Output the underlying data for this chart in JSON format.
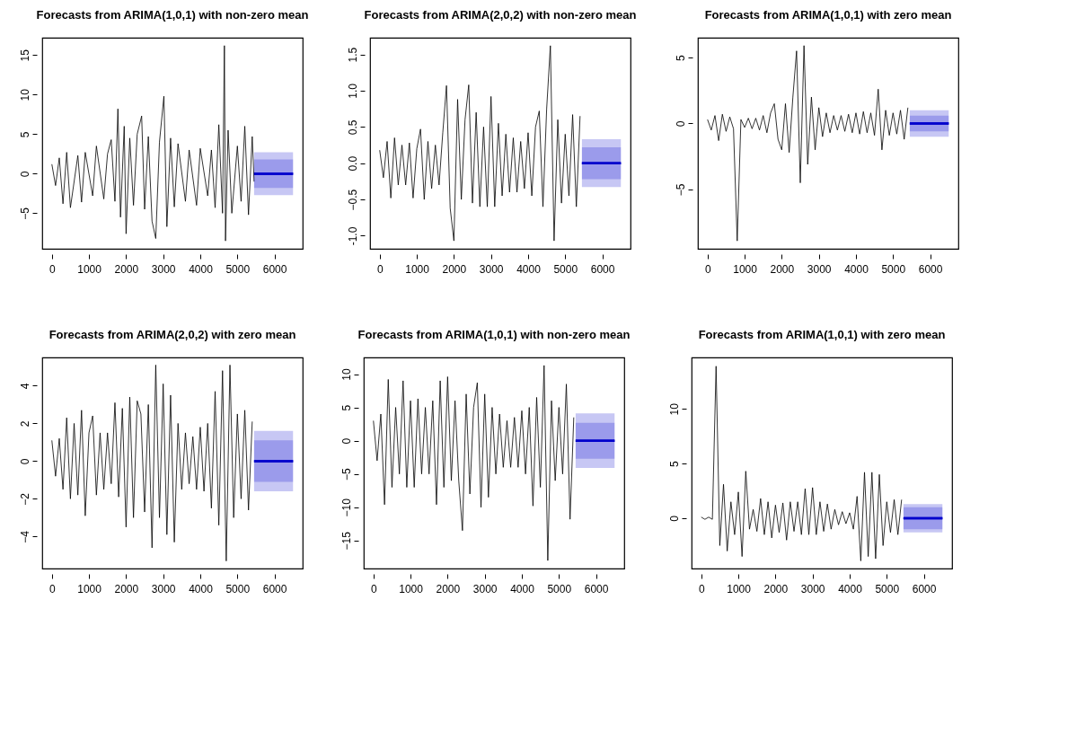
{
  "chart_data": [
    {
      "type": "line",
      "title": "Forecasts from ARIMA(1,0,1) with non-zero mean",
      "xlim": [
        -260,
        6760
      ],
      "xticks": [
        0,
        1000,
        2000,
        3000,
        4000,
        5000,
        6000
      ],
      "ylim": [
        -9.5,
        17.2
      ],
      "yticks": [
        -5,
        0,
        5,
        10,
        15
      ],
      "series": [
        {
          "color": "#000000",
          "x": [
            0,
            100,
            200,
            300,
            400,
            500,
            700,
            800,
            900,
            1100,
            1200,
            1400,
            1500,
            1600,
            1700,
            1780,
            1850,
            1950,
            2000,
            2100,
            2200,
            2300,
            2420,
            2500,
            2600,
            2700,
            2800,
            2900,
            3020,
            3100,
            3200,
            3300,
            3400,
            3600,
            3700,
            3900,
            4000,
            4200,
            4300,
            4400,
            4500,
            4600,
            4650,
            4680,
            4750,
            4850,
            5000,
            5100,
            5200,
            5300,
            5400,
            5450
          ],
          "values": [
            1.2,
            -1.5,
            2.0,
            -3.8,
            2.7,
            -4.3,
            2.3,
            -3.6,
            2.7,
            -2.8,
            3.5,
            -3.2,
            2.5,
            4.3,
            -3.5,
            8.2,
            -5.5,
            6.0,
            -7.6,
            4.5,
            -4.0,
            5.0,
            7.3,
            -4.5,
            4.7,
            -6.0,
            -8.2,
            4.0,
            9.8,
            -6.7,
            4.5,
            -4.2,
            3.8,
            -3.5,
            3.0,
            -4.0,
            3.2,
            -2.8,
            3.0,
            -4.3,
            6.2,
            -5.0,
            16.2,
            -8.5,
            5.5,
            -5.0,
            3.5,
            -3.5,
            6.0,
            -5.2,
            4.7,
            -1.0
          ]
        },
        {
          "color": "#0000cc",
          "x": [
            5450,
            6500
          ],
          "values": [
            0,
            0
          ],
          "lower": [
            -2.7,
            -2.7
          ],
          "upper": [
            2.7,
            2.7
          ]
        },
        {
          "color": "#0000cc",
          "x": [
            5450,
            6500
          ],
          "values": [
            0,
            0
          ],
          "lower": [
            -1.8,
            -1.8
          ],
          "upper": [
            1.8,
            1.8
          ]
        }
      ]
    },
    {
      "type": "line",
      "title": "Forecasts from ARIMA(2,0,2) with non-zero mean",
      "xlim": [
        -260,
        6760
      ],
      "xticks": [
        0,
        1000,
        2000,
        3000,
        4000,
        5000,
        6000
      ],
      "ylim": [
        -1.18,
        1.73
      ],
      "yticks": [
        {
          "value": -1,
          "label": "-1.0"
        },
        -0.5,
        {
          "value": 0,
          "label": "0.0"
        },
        0.5,
        {
          "value": 1,
          "label": "1.0"
        },
        1.5
      ],
      "x": [
        0,
        100,
        200,
        300,
        400,
        500,
        600,
        700,
        800,
        900,
        1000,
        1100,
        1200,
        1300,
        1400,
        1500,
        1600,
        1700,
        1800,
        1900,
        2000,
        2100,
        2200,
        2300,
        2400,
        2500,
        2600,
        2700,
        2800,
        2900,
        3000,
        3100,
        3200,
        3300,
        3400,
        3500,
        3600,
        3700,
        3800,
        3900,
        4000,
        4100,
        4200,
        4300,
        4400,
        4500,
        4600,
        4700,
        4800,
        4900,
        5000,
        5100,
        5200,
        5300,
        5400
      ],
      "series": [
        {
          "color": "#000000",
          "values": [
            0.18,
            -0.2,
            0.3,
            -0.48,
            0.35,
            -0.3,
            0.25,
            -0.3,
            0.28,
            -0.48,
            0.2,
            0.47,
            -0.5,
            0.3,
            -0.35,
            0.25,
            -0.3,
            0.42,
            1.07,
            -0.62,
            -1.07,
            0.88,
            -0.5,
            0.6,
            1.08,
            -0.55,
            0.7,
            -0.6,
            0.5,
            -0.6,
            0.92,
            -0.6,
            0.55,
            -0.45,
            0.4,
            -0.4,
            0.35,
            -0.4,
            0.3,
            -0.35,
            0.42,
            -0.45,
            0.5,
            0.72,
            -0.6,
            0.75,
            1.62,
            -1.07,
            0.6,
            -0.55,
            0.4,
            -0.45,
            0.67,
            -0.6,
            0.65
          ]
        },
        {
          "color": "#0000cc",
          "x": [
            5450,
            6500
          ],
          "values": [
            0,
            0
          ],
          "lower": [
            -0.33,
            -0.33
          ],
          "upper": [
            0.33,
            0.33
          ]
        },
        {
          "color": "#0000cc",
          "x": [
            5450,
            6500
          ],
          "values": [
            0,
            0
          ],
          "lower": [
            -0.22,
            -0.22
          ],
          "upper": [
            0.22,
            0.22
          ]
        }
      ]
    },
    {
      "type": "line",
      "title": "Forecasts from ARIMA(1,0,1) with zero mean",
      "xlim": [
        -260,
        6760
      ],
      "xticks": [
        0,
        1000,
        2000,
        3000,
        4000,
        5000,
        6000
      ],
      "ylim": [
        -9.5,
        6.5
      ],
      "yticks": [
        -5,
        0,
        5
      ],
      "x": [
        0,
        100,
        200,
        300,
        400,
        500,
        600,
        700,
        800,
        900,
        1000,
        1100,
        1200,
        1300,
        1400,
        1500,
        1600,
        1700,
        1800,
        1900,
        2000,
        2100,
        2200,
        2300,
        2400,
        2500,
        2600,
        2700,
        2800,
        2900,
        3000,
        3100,
        3200,
        3300,
        3400,
        3500,
        3600,
        3700,
        3800,
        3900,
        4000,
        4100,
        4200,
        4300,
        4400,
        4500,
        4600,
        4700,
        4800,
        4900,
        5000,
        5100,
        5200,
        5300,
        5400
      ],
      "series": [
        {
          "color": "#000000",
          "values": [
            0.3,
            -0.5,
            0.6,
            -1.3,
            0.7,
            -0.6,
            0.5,
            -0.4,
            -8.9,
            0.3,
            -0.3,
            0.4,
            -0.4,
            0.4,
            -0.5,
            0.6,
            -0.7,
            0.8,
            1.5,
            -1.2,
            -2.0,
            1.5,
            -2.2,
            2.0,
            5.5,
            -4.5,
            5.9,
            -3.1,
            2.0,
            -2.0,
            1.2,
            -1.0,
            0.8,
            -0.7,
            0.6,
            -0.5,
            0.6,
            -0.6,
            0.7,
            -0.7,
            0.8,
            -0.8,
            0.9,
            -0.7,
            0.8,
            -0.9,
            2.6,
            -2.0,
            1.0,
            -0.9,
            0.8,
            -0.8,
            1.0,
            -1.2,
            1.2
          ]
        },
        {
          "color": "#0000cc",
          "x": [
            5450,
            6500
          ],
          "values": [
            0,
            0
          ],
          "lower": [
            -1.0,
            -1.0
          ],
          "upper": [
            1.0,
            1.0
          ]
        },
        {
          "color": "#0000cc",
          "x": [
            5450,
            6500
          ],
          "values": [
            0,
            0
          ],
          "lower": [
            -0.6,
            -0.6
          ],
          "upper": [
            0.6,
            0.6
          ]
        }
      ]
    },
    {
      "type": "line",
      "title": "Forecasts from ARIMA(2,0,2) with zero mean",
      "xlim": [
        -260,
        6760
      ],
      "xticks": [
        0,
        1000,
        2000,
        3000,
        4000,
        5000,
        6000
      ],
      "ylim": [
        -5.7,
        5.5
      ],
      "yticks": [
        -4,
        -2,
        0,
        2,
        4
      ],
      "x": [
        0,
        100,
        200,
        300,
        400,
        500,
        600,
        700,
        800,
        900,
        1000,
        1100,
        1200,
        1300,
        1400,
        1500,
        1600,
        1700,
        1800,
        1900,
        2000,
        2100,
        2200,
        2300,
        2400,
        2500,
        2600,
        2700,
        2800,
        2900,
        3000,
        3100,
        3200,
        3300,
        3400,
        3500,
        3600,
        3700,
        3800,
        3900,
        4000,
        4100,
        4200,
        4300,
        4400,
        4500,
        4600,
        4700,
        4800,
        4900,
        5000,
        5100,
        5200,
        5300,
        5400
      ],
      "series": [
        {
          "color": "#000000",
          "values": [
            1.1,
            -0.8,
            1.2,
            -1.5,
            2.3,
            -2.0,
            2.0,
            -1.8,
            2.7,
            -2.9,
            1.5,
            2.4,
            -1.8,
            1.5,
            -1.5,
            1.5,
            -1.2,
            3.1,
            -1.9,
            2.8,
            -3.5,
            3.4,
            -3.0,
            3.2,
            2.5,
            -2.7,
            3.0,
            -4.6,
            5.1,
            -3.0,
            4.1,
            -3.9,
            3.5,
            -4.3,
            2.0,
            -1.5,
            1.5,
            -1.2,
            1.3,
            -1.5,
            1.8,
            -1.6,
            2.0,
            -2.5,
            3.7,
            -3.4,
            4.8,
            -5.3,
            5.1,
            -3.0,
            2.5,
            -2.0,
            2.7,
            -2.6,
            2.1
          ]
        },
        {
          "color": "#0000cc",
          "x": [
            5450,
            6500
          ],
          "values": [
            0,
            0
          ],
          "lower": [
            -1.6,
            -1.6
          ],
          "upper": [
            1.6,
            1.6
          ]
        },
        {
          "color": "#0000cc",
          "x": [
            5450,
            6500
          ],
          "values": [
            0,
            0
          ],
          "lower": [
            -1.1,
            -1.1
          ],
          "upper": [
            1.1,
            1.1
          ]
        }
      ]
    },
    {
      "type": "line",
      "title": "Forecasts from ARIMA(1,0,1) with non-zero mean",
      "xlim": [
        -260,
        6760
      ],
      "xticks": [
        0,
        1000,
        2000,
        3000,
        4000,
        5000,
        6000
      ],
      "ylim": [
        -19.2,
        12.5
      ],
      "yticks": [
        -15,
        -10,
        -5,
        0,
        5,
        10
      ],
      "x": [
        0,
        100,
        200,
        300,
        400,
        500,
        600,
        700,
        800,
        900,
        1000,
        1100,
        1200,
        1300,
        1400,
        1500,
        1600,
        1700,
        1800,
        1900,
        2000,
        2100,
        2200,
        2300,
        2400,
        2500,
        2600,
        2700,
        2800,
        2900,
        3000,
        3100,
        3200,
        3300,
        3400,
        3500,
        3600,
        3700,
        3800,
        3900,
        4000,
        4100,
        4200,
        4300,
        4400,
        4500,
        4600,
        4700,
        4800,
        4900,
        5000,
        5100,
        5200,
        5300,
        5400
      ],
      "series": [
        {
          "color": "#000000",
          "values": [
            3.0,
            -3.0,
            4.0,
            -9.6,
            9.2,
            -7.0,
            5.0,
            -5.0,
            9.0,
            -7.0,
            6.0,
            -7.0,
            6.3,
            -5.0,
            5.0,
            -5.0,
            6.0,
            -9.6,
            9.0,
            -7.0,
            9.6,
            -6.0,
            6.0,
            -6.0,
            -13.5,
            7.0,
            -8.0,
            5.0,
            8.7,
            -10.0,
            7.0,
            -8.5,
            5.0,
            -5.0,
            4.0,
            -4.0,
            3.0,
            -4.0,
            3.5,
            -4.0,
            4.5,
            -5.0,
            5.0,
            -9.8,
            6.5,
            -7.0,
            11.3,
            -18.0,
            6.0,
            -6.0,
            5.0,
            -5.0,
            8.5,
            -11.8,
            3.5
          ]
        },
        {
          "color": "#0000cc",
          "x": [
            5450,
            6500
          ],
          "values": [
            0,
            0
          ],
          "lower": [
            -4.1,
            -4.1
          ],
          "upper": [
            4.1,
            4.1
          ]
        },
        {
          "color": "#0000cc",
          "x": [
            5450,
            6500
          ],
          "values": [
            0,
            0
          ],
          "lower": [
            -2.7,
            -2.7
          ],
          "upper": [
            2.7,
            2.7
          ]
        }
      ]
    },
    {
      "type": "line",
      "title": "Forecasts from ARIMA(1,0,1) with zero mean",
      "xlim": [
        -260,
        6760
      ],
      "xticks": [
        0,
        1000,
        2000,
        3000,
        4000,
        5000,
        6000
      ],
      "ylim": [
        -4.6,
        14.7
      ],
      "yticks": [
        0,
        5,
        10
      ],
      "x": [
        0,
        100,
        200,
        300,
        400,
        500,
        600,
        700,
        800,
        900,
        1000,
        1100,
        1200,
        1300,
        1400,
        1500,
        1600,
        1700,
        1800,
        1900,
        2000,
        2100,
        2200,
        2300,
        2400,
        2500,
        2600,
        2700,
        2800,
        2900,
        3000,
        3100,
        3200,
        3300,
        3400,
        3500,
        3600,
        3700,
        3800,
        3900,
        4000,
        4100,
        4200,
        4300,
        4400,
        4500,
        4600,
        4700,
        4800,
        4900,
        5000,
        5100,
        5200,
        5300,
        5400
      ],
      "series": [
        {
          "color": "#000000",
          "values": [
            0.1,
            -0.1,
            0.1,
            -0.1,
            13.9,
            -2.5,
            3.1,
            -3.0,
            1.5,
            -1.5,
            2.4,
            -3.5,
            4.3,
            -1.0,
            0.8,
            -1.2,
            1.8,
            -1.5,
            1.5,
            -1.8,
            1.2,
            -1.3,
            1.4,
            -2.0,
            1.5,
            -1.2,
            1.5,
            -1.5,
            2.7,
            -1.5,
            2.8,
            -1.5,
            1.5,
            -1.2,
            1.3,
            -1.0,
            0.8,
            -0.6,
            0.6,
            -0.5,
            0.5,
            -1.0,
            2.0,
            -3.9,
            4.2,
            -3.5,
            4.2,
            -3.7,
            4.0,
            -2.5,
            1.5,
            -1.3,
            1.7,
            -1.5,
            1.7
          ]
        },
        {
          "color": "#0000cc",
          "x": [
            5450,
            6500
          ],
          "values": [
            0,
            0
          ],
          "lower": [
            -1.3,
            -1.3
          ],
          "upper": [
            1.3,
            1.3
          ]
        },
        {
          "color": "#0000cc",
          "x": [
            5450,
            6500
          ],
          "values": [
            0,
            0
          ],
          "lower": [
            -1.0,
            -1.0
          ],
          "upper": [
            1.0,
            1.0
          ]
        }
      ]
    }
  ]
}
